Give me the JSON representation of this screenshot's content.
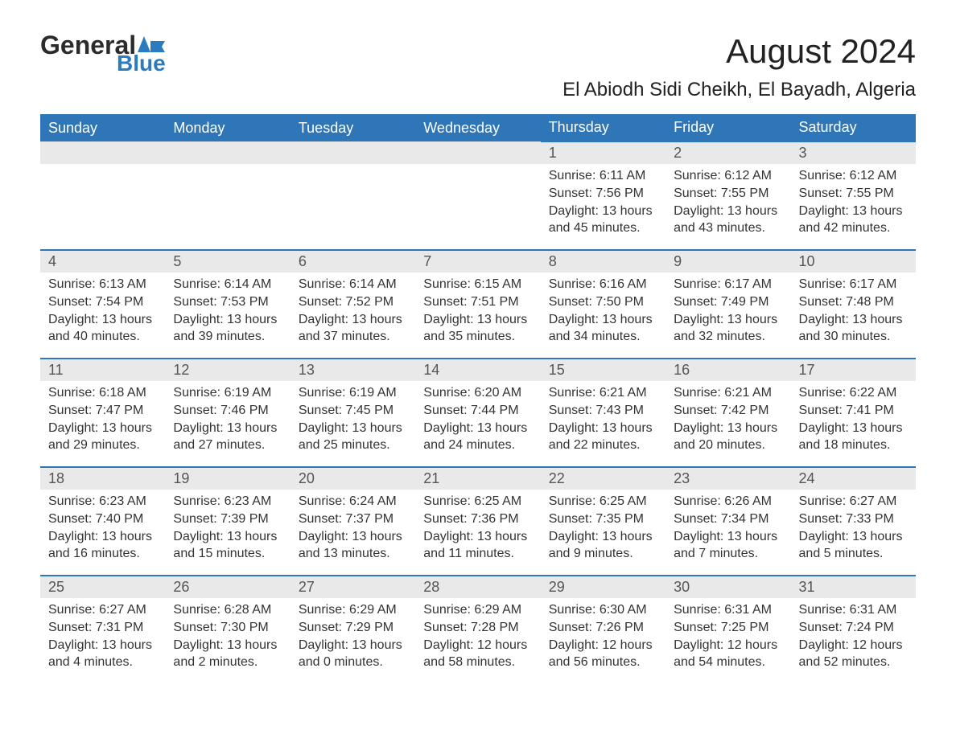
{
  "logo": {
    "word1": "General",
    "word2": "Blue"
  },
  "title": "August 2024",
  "subtitle": "El Abiodh Sidi Cheikh, El Bayadh, Algeria",
  "colors": {
    "header_bg": "#2f76b8",
    "header_text": "#ffffff",
    "daynum_bg": "#e9e9e9",
    "daynum_text": "#555555",
    "border_top": "#2f76b8",
    "body_text": "#333333",
    "page_bg": "#ffffff",
    "logo_dark": "#2b2b2b",
    "logo_blue": "#2b7bbf"
  },
  "fonts": {
    "title_size": 42,
    "subtitle_size": 24,
    "weekday_size": 18,
    "daynum_size": 18,
    "body_size": 16
  },
  "weekdays": [
    "Sunday",
    "Monday",
    "Tuesday",
    "Wednesday",
    "Thursday",
    "Friday",
    "Saturday"
  ],
  "weeks": [
    [
      null,
      null,
      null,
      null,
      {
        "n": "1",
        "sunrise": "6:11 AM",
        "sunset": "7:56 PM",
        "daylight": "13 hours and 45 minutes."
      },
      {
        "n": "2",
        "sunrise": "6:12 AM",
        "sunset": "7:55 PM",
        "daylight": "13 hours and 43 minutes."
      },
      {
        "n": "3",
        "sunrise": "6:12 AM",
        "sunset": "7:55 PM",
        "daylight": "13 hours and 42 minutes."
      }
    ],
    [
      {
        "n": "4",
        "sunrise": "6:13 AM",
        "sunset": "7:54 PM",
        "daylight": "13 hours and 40 minutes."
      },
      {
        "n": "5",
        "sunrise": "6:14 AM",
        "sunset": "7:53 PM",
        "daylight": "13 hours and 39 minutes."
      },
      {
        "n": "6",
        "sunrise": "6:14 AM",
        "sunset": "7:52 PM",
        "daylight": "13 hours and 37 minutes."
      },
      {
        "n": "7",
        "sunrise": "6:15 AM",
        "sunset": "7:51 PM",
        "daylight": "13 hours and 35 minutes."
      },
      {
        "n": "8",
        "sunrise": "6:16 AM",
        "sunset": "7:50 PM",
        "daylight": "13 hours and 34 minutes."
      },
      {
        "n": "9",
        "sunrise": "6:17 AM",
        "sunset": "7:49 PM",
        "daylight": "13 hours and 32 minutes."
      },
      {
        "n": "10",
        "sunrise": "6:17 AM",
        "sunset": "7:48 PM",
        "daylight": "13 hours and 30 minutes."
      }
    ],
    [
      {
        "n": "11",
        "sunrise": "6:18 AM",
        "sunset": "7:47 PM",
        "daylight": "13 hours and 29 minutes."
      },
      {
        "n": "12",
        "sunrise": "6:19 AM",
        "sunset": "7:46 PM",
        "daylight": "13 hours and 27 minutes."
      },
      {
        "n": "13",
        "sunrise": "6:19 AM",
        "sunset": "7:45 PM",
        "daylight": "13 hours and 25 minutes."
      },
      {
        "n": "14",
        "sunrise": "6:20 AM",
        "sunset": "7:44 PM",
        "daylight": "13 hours and 24 minutes."
      },
      {
        "n": "15",
        "sunrise": "6:21 AM",
        "sunset": "7:43 PM",
        "daylight": "13 hours and 22 minutes."
      },
      {
        "n": "16",
        "sunrise": "6:21 AM",
        "sunset": "7:42 PM",
        "daylight": "13 hours and 20 minutes."
      },
      {
        "n": "17",
        "sunrise": "6:22 AM",
        "sunset": "7:41 PM",
        "daylight": "13 hours and 18 minutes."
      }
    ],
    [
      {
        "n": "18",
        "sunrise": "6:23 AM",
        "sunset": "7:40 PM",
        "daylight": "13 hours and 16 minutes."
      },
      {
        "n": "19",
        "sunrise": "6:23 AM",
        "sunset": "7:39 PM",
        "daylight": "13 hours and 15 minutes."
      },
      {
        "n": "20",
        "sunrise": "6:24 AM",
        "sunset": "7:37 PM",
        "daylight": "13 hours and 13 minutes."
      },
      {
        "n": "21",
        "sunrise": "6:25 AM",
        "sunset": "7:36 PM",
        "daylight": "13 hours and 11 minutes."
      },
      {
        "n": "22",
        "sunrise": "6:25 AM",
        "sunset": "7:35 PM",
        "daylight": "13 hours and 9 minutes."
      },
      {
        "n": "23",
        "sunrise": "6:26 AM",
        "sunset": "7:34 PM",
        "daylight": "13 hours and 7 minutes."
      },
      {
        "n": "24",
        "sunrise": "6:27 AM",
        "sunset": "7:33 PM",
        "daylight": "13 hours and 5 minutes."
      }
    ],
    [
      {
        "n": "25",
        "sunrise": "6:27 AM",
        "sunset": "7:31 PM",
        "daylight": "13 hours and 4 minutes."
      },
      {
        "n": "26",
        "sunrise": "6:28 AM",
        "sunset": "7:30 PM",
        "daylight": "13 hours and 2 minutes."
      },
      {
        "n": "27",
        "sunrise": "6:29 AM",
        "sunset": "7:29 PM",
        "daylight": "13 hours and 0 minutes."
      },
      {
        "n": "28",
        "sunrise": "6:29 AM",
        "sunset": "7:28 PM",
        "daylight": "12 hours and 58 minutes."
      },
      {
        "n": "29",
        "sunrise": "6:30 AM",
        "sunset": "7:26 PM",
        "daylight": "12 hours and 56 minutes."
      },
      {
        "n": "30",
        "sunrise": "6:31 AM",
        "sunset": "7:25 PM",
        "daylight": "12 hours and 54 minutes."
      },
      {
        "n": "31",
        "sunrise": "6:31 AM",
        "sunset": "7:24 PM",
        "daylight": "12 hours and 52 minutes."
      }
    ]
  ],
  "labels": {
    "sunrise": "Sunrise:",
    "sunset": "Sunset:",
    "daylight": "Daylight:"
  }
}
